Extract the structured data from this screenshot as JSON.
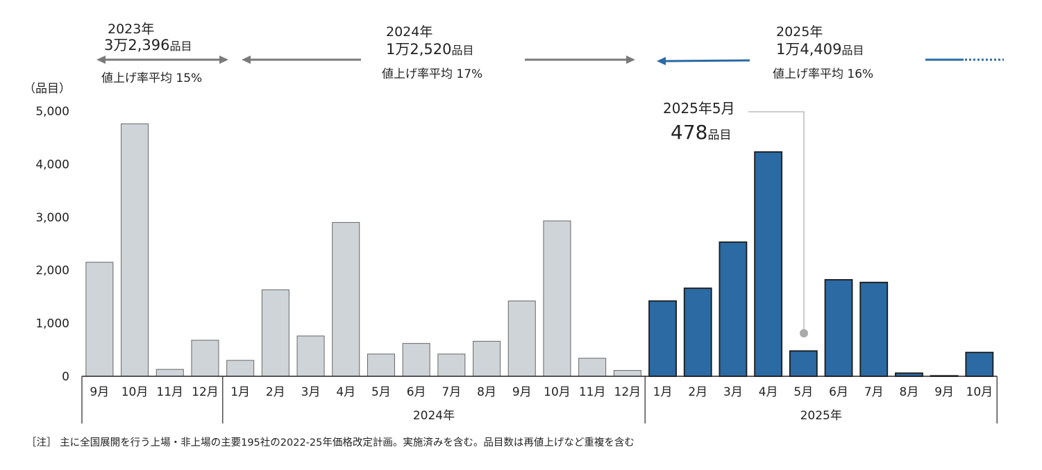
{
  "chart_data": {
    "type": "bar",
    "unit_label": "（品目）",
    "ylim": [
      0,
      5000
    ],
    "yticks": [
      "0",
      "1,000",
      "2,000",
      "3,000",
      "4,000",
      "5,000"
    ],
    "ytick_values": [
      0,
      1000,
      2000,
      3000,
      4000,
      5000
    ],
    "categories": [
      "9月",
      "10月",
      "11月",
      "12月",
      "1月",
      "2月",
      "3月",
      "4月",
      "5月",
      "6月",
      "7月",
      "8月",
      "9月",
      "10月",
      "11月",
      "12月",
      "1月",
      "2月",
      "3月",
      "4月",
      "5月",
      "6月",
      "7月",
      "8月",
      "9月",
      "10月"
    ],
    "values": [
      2150,
      4760,
      130,
      680,
      300,
      1630,
      760,
      2900,
      420,
      620,
      420,
      660,
      1420,
      2930,
      340,
      110,
      1420,
      1660,
      2530,
      4230,
      478,
      1820,
      1770,
      60,
      10,
      450
    ],
    "year_groups": [
      {
        "label": "",
        "start": 0,
        "end": 3
      },
      {
        "label": "2024年",
        "start": 4,
        "end": 15
      },
      {
        "label": "2025年",
        "start": 16,
        "end": 25
      }
    ],
    "colors": {
      "past": "#cfd4d8",
      "past_stroke": "#666666",
      "current": "#2b6aa3",
      "current_stroke": "#1a1a1a",
      "arrow_gray": "#7a7a7a",
      "arrow_blue": "#2b6aa3"
    },
    "highlight_from_index": 16,
    "period_annotations": [
      {
        "year": "2023年",
        "count": "3万2,396",
        "unit": "品目",
        "rate": "値上げ率平均 15%"
      },
      {
        "year": "2024年",
        "count": "1万2,520",
        "unit": "品目",
        "rate": "値上げ率平均  17%"
      },
      {
        "year": "2025年",
        "count": "1万4,409",
        "unit": "品目",
        "rate": "値上げ率平均  16%"
      }
    ],
    "callout": {
      "label": "2025年5月",
      "value": "478",
      "unit": "品目",
      "index": 20
    }
  },
  "footnote": "［注］ 主に全国展開を行う上場・非上場の主要195社の2022-25年価格改定計画。実施済みを含む。品目数は再値上げなど重複を含む"
}
